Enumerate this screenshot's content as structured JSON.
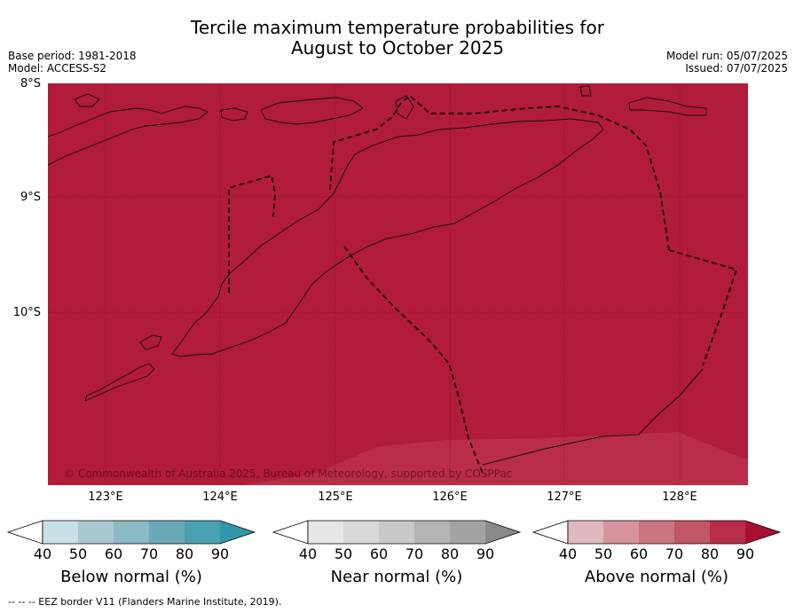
{
  "title": {
    "line1": "Tercile maximum temperature probabilities for",
    "line2": "August to October 2025"
  },
  "meta_left": {
    "base_period": "Base period: 1981-2018",
    "model": "Model: ACCESS-S2"
  },
  "meta_right": {
    "model_run": "Model run: 05/07/2025",
    "issued": "Issued: 07/07/2025"
  },
  "map": {
    "lat_labels": [
      "8°S",
      "9°S",
      "10°S"
    ],
    "lon_labels": [
      "123°E",
      "124°E",
      "125°E",
      "126°E",
      "127°E",
      "128°E"
    ],
    "copyright": "© Commonwealth of Australia 2025, Bureau of Meteorology, supported by COSPPac",
    "fill_color": "#b01c39",
    "lighter_patch_color": "#b92d48"
  },
  "colorbars": [
    {
      "title": "Below normal (%)",
      "ticks": [
        "40",
        "50",
        "60",
        "70",
        "80",
        "90"
      ],
      "colors": [
        "#ffffff",
        "#c8e1e7",
        "#a8c9d1",
        "#8bb9c4",
        "#6aaab8",
        "#48a1b1",
        "#3196a8"
      ]
    },
    {
      "title": "Near normal (%)",
      "ticks": [
        "40",
        "50",
        "60",
        "70",
        "80",
        "90"
      ],
      "colors": [
        "#ffffff",
        "#e6e6e6",
        "#d9d9d9",
        "#c9c9c9",
        "#b4b4b4",
        "#a3a3a3",
        "#8a8a8a"
      ]
    },
    {
      "title": "Above normal (%)",
      "ticks": [
        "40",
        "50",
        "60",
        "70",
        "80",
        "90"
      ],
      "colors": [
        "#ffffff",
        "#e1b8c0",
        "#d6939e",
        "#cb7580",
        "#c15664",
        "#b92d48",
        "#a8102f"
      ]
    }
  ],
  "footnote": "-- -- -- EEZ border V11 (Flanders Marine Institute, 2019)."
}
